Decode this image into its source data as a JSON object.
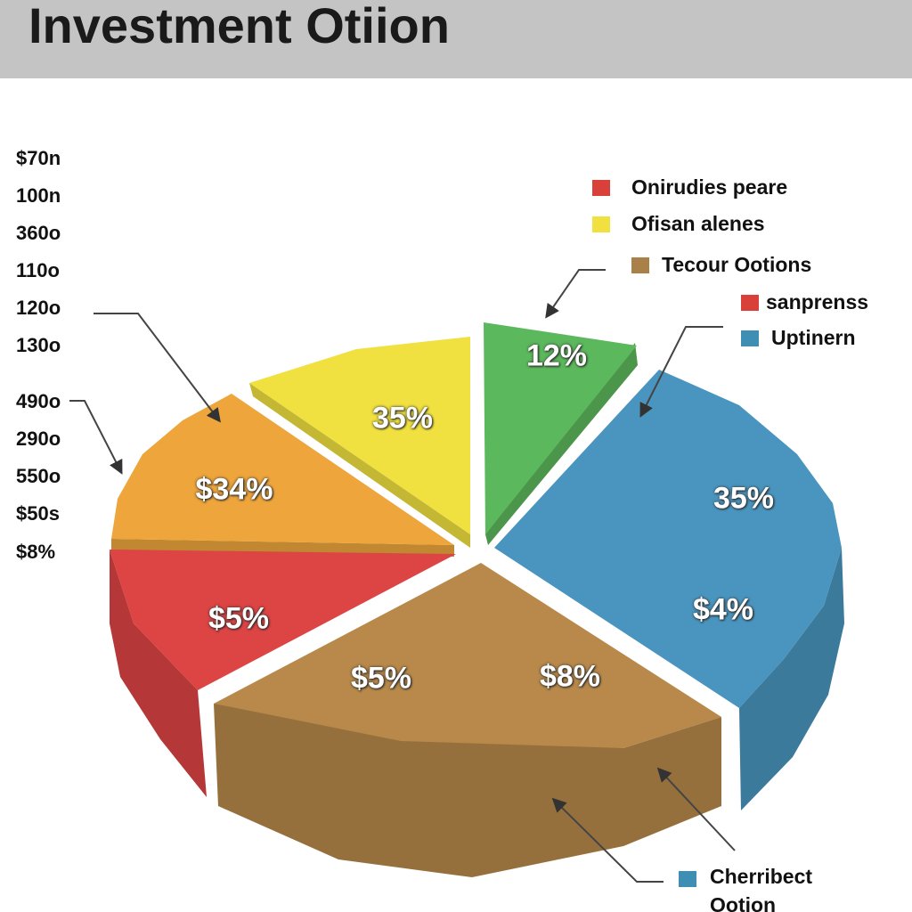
{
  "chart_data": {
    "type": "pie",
    "title": "Investment Otiion",
    "side_labels": [
      "$70n",
      "100n",
      "360o",
      "110o",
      "120o",
      "130o",
      "490o",
      "290o",
      "550o",
      "$50s",
      "$8%"
    ],
    "legend": [
      {
        "name": "Onirudies peare",
        "color": "#d9403a"
      },
      {
        "name": "Ofisan alenes",
        "color": "#f0e040"
      },
      {
        "name": "Tecour Ootions",
        "color": "#a88048"
      },
      {
        "name": "sanprenss",
        "color": "#d9403a"
      },
      {
        "name": "Uptinern",
        "color": "#3f8fb5"
      },
      {
        "name": "Cherribect Ootion",
        "color": "#3f8fb5"
      }
    ],
    "slices": [
      {
        "color": "#5cb85c",
        "labels": [
          "12%"
        ]
      },
      {
        "color": "#f0e040",
        "labels": [
          "35%"
        ]
      },
      {
        "color": "#eda53c",
        "labels": [
          "$34%"
        ]
      },
      {
        "color": "#dd4444",
        "labels": [
          "$5%"
        ]
      },
      {
        "color": "#b8894a",
        "labels": [
          "$5%",
          "$8%"
        ]
      },
      {
        "color": "#4a95bf",
        "labels": [
          "35%",
          "$4%"
        ]
      }
    ]
  }
}
